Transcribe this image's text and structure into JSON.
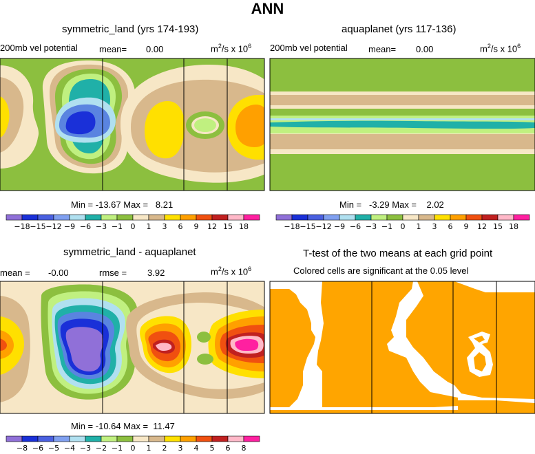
{
  "figure": {
    "title": "ANN",
    "panels": [
      {
        "id": "p1",
        "title": "symmetric_land (yrs 174-193)",
        "field_label": "200mb  vel  potential",
        "mean_label": "mean=",
        "mean_value": "0.00",
        "units_main": "m",
        "units_sup1": "2",
        "units_mid": "/s x 10",
        "units_sup2": "6",
        "min_label": "Min =",
        "min_value": "-13.67",
        "max_label": "Max =",
        "max_value": "8.21"
      },
      {
        "id": "p2",
        "title": "aquaplanet (yrs 117-136)",
        "field_label": "200mb  vel  potential",
        "mean_label": "mean=",
        "mean_value": "0.00",
        "units_main": "m",
        "units_sup1": "2",
        "units_mid": "/s x 10",
        "units_sup2": "6",
        "min_label": "Min =",
        "min_value": "-3.29",
        "max_label": "Max =",
        "max_value": "2.02"
      },
      {
        "id": "p3",
        "title": "symmetric_land - aquaplanet",
        "mean_label": "mean =",
        "mean_value": "-0.00",
        "rmse_label": "rmse =",
        "rmse_value": "3.92",
        "units_main": "m",
        "units_sup1": "2",
        "units_mid": "/s x 10",
        "units_sup2": "6",
        "min_label": "Min =",
        "min_value": "-10.64",
        "max_label": "Max =",
        "max_value": "11.47"
      },
      {
        "id": "p4",
        "title": "T-test of the two means at each grid point",
        "subtitle": "Colored cells are significant at the 0.05 level"
      }
    ]
  },
  "chart_data": [
    {
      "type": "heatmap",
      "title": "symmetric_land (yrs 174-193)",
      "variable": "200mb vel potential",
      "units": "m2/s x 10^6",
      "mean": 0.0,
      "min": -13.67,
      "max": 8.21,
      "levels": [
        -18,
        -15,
        -12,
        -9,
        -6,
        -3,
        -1,
        0,
        1,
        3,
        6,
        9,
        12,
        15,
        18
      ],
      "level_labels": [
        "-18",
        "-15",
        "-12",
        "-9",
        "-6",
        "-3",
        "-1",
        "0",
        "1",
        "3",
        "6",
        "9",
        "12",
        "15",
        "18"
      ]
    },
    {
      "type": "heatmap",
      "title": "aquaplanet (yrs 117-136)",
      "variable": "200mb vel potential",
      "units": "m2/s x 10^6",
      "mean": 0.0,
      "min": -3.29,
      "max": 2.02,
      "levels": [
        -18,
        -15,
        -12,
        -9,
        -6,
        -3,
        -1,
        0,
        1,
        3,
        6,
        9,
        12,
        15,
        18
      ],
      "level_labels": [
        "-18",
        "-15",
        "-12",
        "-9",
        "-6",
        "-3",
        "-1",
        "0",
        "1",
        "3",
        "6",
        "9",
        "12",
        "15",
        "18"
      ]
    },
    {
      "type": "heatmap",
      "title": "symmetric_land - aquaplanet",
      "units": "m2/s x 10^6",
      "mean": -0.0,
      "rmse": 3.92,
      "min": -10.64,
      "max": 11.47,
      "levels": [
        -8,
        -6,
        -5,
        -4,
        -3,
        -2,
        -1,
        0,
        1,
        2,
        3,
        4,
        5,
        6,
        8
      ],
      "level_labels": [
        "-8",
        "-6",
        "-5",
        "-4",
        "-3",
        "-2",
        "-1",
        "0",
        "1",
        "2",
        "3",
        "4",
        "5",
        "6",
        "8"
      ]
    },
    {
      "type": "heatmap",
      "title": "T-test of the two means at each grid point",
      "subtitle": "Colored cells are significant at the 0.05 level",
      "significance_level": 0.05
    }
  ],
  "colors": {
    "green": "#8cbf3f",
    "tan": "#d8b88c",
    "cream": "#f7e7c6",
    "lightblue": "#b0e0f0",
    "teal": "#20b0a8",
    "medblue": "#5a84e0",
    "blue": "#1a30d8",
    "purple": "#9070d8",
    "yellow": "#ffe000",
    "orange": "#ffa000",
    "redorange": "#f05010",
    "darkred": "#c02020",
    "pink": "#ffb8c8",
    "magenta": "#ff20a0",
    "lightgreen": "#c0f080",
    "sig_orange": "#ffa500"
  },
  "colorbar_colors": [
    "#9070d8",
    "#1a30d8",
    "#4a60e0",
    "#80a0f0",
    "#b0e0f0",
    "#20b0a8",
    "#c0f080",
    "#8cbf3f",
    "#f7e7c6",
    "#d8b88c",
    "#ffe000",
    "#ffa000",
    "#f05010",
    "#c02020",
    "#ffb8c8",
    "#ff20a0"
  ]
}
